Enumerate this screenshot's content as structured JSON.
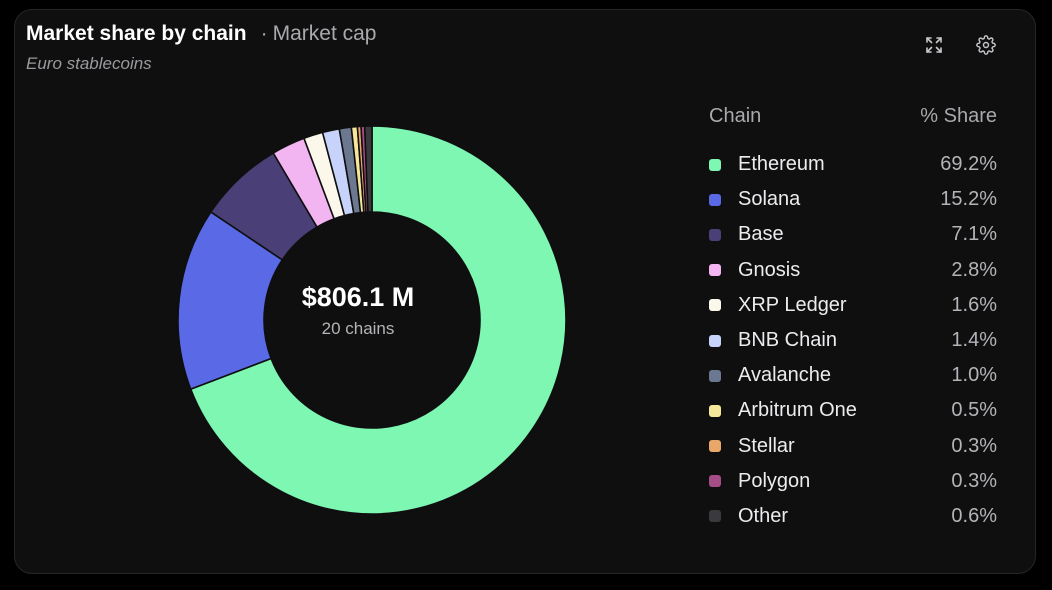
{
  "header": {
    "title": "Market share by chain",
    "separator": "·",
    "metric": "Market cap",
    "subtitle": "Euro stablecoins"
  },
  "toolbar": {
    "expand_icon": "expand-icon",
    "settings_icon": "gear-icon"
  },
  "center": {
    "total": "$806.1 M",
    "count": "20 chains"
  },
  "legend": {
    "col_chain": "Chain",
    "col_share": "% Share"
  },
  "chart_data": {
    "type": "pie",
    "variant": "donut",
    "categories": [
      "Ethereum",
      "Solana",
      "Base",
      "Gnosis",
      "XRP Ledger",
      "BNB Chain",
      "Avalanche",
      "Arbitrum One",
      "Stellar",
      "Polygon",
      "Other"
    ],
    "values": [
      69.2,
      15.2,
      7.1,
      2.8,
      1.6,
      1.4,
      1.0,
      0.5,
      0.3,
      0.3,
      0.6
    ],
    "labels": [
      "69.2%",
      "15.2%",
      "7.1%",
      "2.8%",
      "1.6%",
      "1.4%",
      "1.0%",
      "0.5%",
      "0.3%",
      "0.3%",
      "0.6%"
    ],
    "colors": [
      "#7df7b2",
      "#5a6ae6",
      "#4b3f78",
      "#f2b5f2",
      "#fbf7ea",
      "#c7d3fb",
      "#6b7890",
      "#f7e79a",
      "#e9a86a",
      "#a44d86",
      "#3a3a3e"
    ],
    "legend_position": "right",
    "start": "top",
    "direction": "clockwise"
  }
}
